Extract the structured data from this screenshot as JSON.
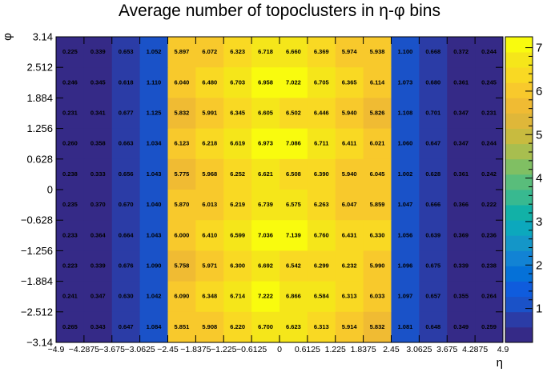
{
  "chart_data": {
    "type": "heatmap",
    "title": "Average number of topoclusters in η-φ bins",
    "xlabel": "η",
    "ylabel": "φ",
    "xlim": [
      -4.9,
      4.9
    ],
    "ylim": [
      -3.14,
      3.14
    ],
    "x_edges": [
      -4.9,
      -4.2875,
      -3.675,
      -3.0625,
      -2.45,
      -1.8375,
      -1.225,
      -0.6125,
      0,
      0.6125,
      1.225,
      1.8375,
      2.45,
      3.0625,
      3.675,
      4.2875,
      4.9
    ],
    "x_tick_labels": [
      "−4.9",
      "−4.2875",
      "−3.675",
      "−3.0625",
      "−2.45",
      "−1.8375",
      "−1.225",
      "−0.6125",
      "0",
      "0.6125",
      "1.225",
      "1.8375",
      "2.45",
      "3.0625",
      "3.675",
      "4.2875",
      "4.9"
    ],
    "y_edges": [
      -3.14,
      -2.512,
      -1.884,
      -1.256,
      -0.628,
      0,
      0.628,
      1.256,
      1.884,
      2.512,
      3.14
    ],
    "y_tick_labels": [
      "−3.14",
      "−2.512",
      "−1.884",
      "−1.256",
      "−0.628",
      "0",
      "0.628",
      "1.256",
      "1.884",
      "2.512",
      "3.14"
    ],
    "z_range": [
      0.22,
      7.25
    ],
    "colorbar_ticks": [
      "1",
      "2",
      "3",
      "4",
      "5",
      "6",
      "7"
    ],
    "palette": [
      "#352a87",
      "#2b3ca6",
      "#1a52c8",
      "#0f5cdd",
      "#0571d8",
      "#1283d4",
      "#1496c8",
      "#0ca8bd",
      "#12b1a7",
      "#38b990",
      "#59bd7b",
      "#80bf63",
      "#a8be4f",
      "#c8bb3f",
      "#dfb739",
      "#f0bb33",
      "#f8c92c",
      "#f9d923",
      "#f5e61a",
      "#f9fb0e"
    ],
    "rows_top_to_bottom": [
      [
        "0.225",
        "0.339",
        "0.653",
        "1.052",
        "5.897",
        "6.072",
        "6.323",
        "6.718",
        "6.660",
        "6.369",
        "5.974",
        "5.938",
        "1.100",
        "0.668",
        "0.372",
        "0.244"
      ],
      [
        "0.246",
        "0.345",
        "0.618",
        "1.110",
        "6.040",
        "6.480",
        "6.703",
        "6.958",
        "7.022",
        "6.705",
        "6.365",
        "6.114",
        "1.073",
        "0.680",
        "0.361",
        "0.245"
      ],
      [
        "0.231",
        "0.341",
        "0.677",
        "1.125",
        "5.832",
        "5.991",
        "6.345",
        "6.605",
        "6.502",
        "6.446",
        "5.940",
        "5.826",
        "1.108",
        "0.701",
        "0.347",
        "0.231"
      ],
      [
        "0.260",
        "0.358",
        "0.663",
        "1.034",
        "6.123",
        "6.218",
        "6.619",
        "6.973",
        "7.086",
        "6.711",
        "6.411",
        "6.021",
        "1.060",
        "0.647",
        "0.347",
        "0.244"
      ],
      [
        "0.238",
        "0.333",
        "0.656",
        "1.043",
        "5.775",
        "5.968",
        "6.252",
        "6.621",
        "6.508",
        "6.390",
        "5.940",
        "6.045",
        "1.002",
        "0.628",
        "0.361",
        "0.242"
      ],
      [
        "0.235",
        "0.370",
        "0.670",
        "1.040",
        "5.870",
        "6.013",
        "6.219",
        "6.739",
        "6.575",
        "6.263",
        "6.047",
        "5.859",
        "1.047",
        "0.666",
        "0.366",
        "0.222"
      ],
      [
        "0.233",
        "0.364",
        "0.664",
        "1.043",
        "6.000",
        "6.410",
        "6.599",
        "7.036",
        "7.139",
        "6.760",
        "6.431",
        "6.330",
        "1.056",
        "0.639",
        "0.369",
        "0.236"
      ],
      [
        "0.223",
        "0.339",
        "0.676",
        "1.090",
        "5.758",
        "5.971",
        "6.300",
        "6.692",
        "6.542",
        "6.299",
        "6.232",
        "5.990",
        "1.096",
        "0.675",
        "0.339",
        "0.238"
      ],
      [
        "0.241",
        "0.347",
        "0.630",
        "1.042",
        "6.090",
        "6.348",
        "6.714",
        "7.222",
        "6.866",
        "6.584",
        "6.313",
        "6.033",
        "1.097",
        "0.657",
        "0.355",
        "0.264"
      ],
      [
        "0.265",
        "0.343",
        "0.647",
        "1.084",
        "5.851",
        "5.908",
        "6.220",
        "6.700",
        "6.623",
        "6.313",
        "5.914",
        "5.832",
        "1.081",
        "0.648",
        "0.349",
        "0.259"
      ]
    ]
  }
}
